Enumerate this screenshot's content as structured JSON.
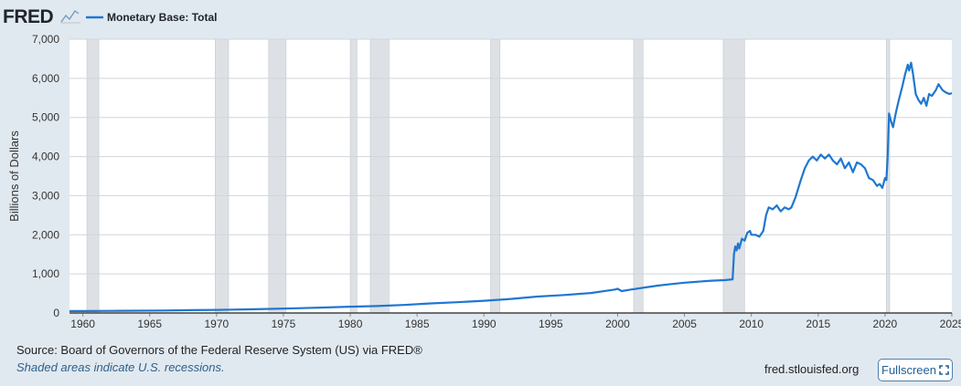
{
  "header": {
    "logo_text": "FRED",
    "legend_label": "Monetary Base: Total"
  },
  "colors": {
    "series": "#1f77d0",
    "recession": "#dde1e5",
    "grid": "#cfd5da",
    "background": "#ffffff",
    "page": "#e1e9f0"
  },
  "chart_data": {
    "type": "line",
    "ylabel": "Billions of Dollars",
    "xlim": [
      1959.0,
      2025.0
    ],
    "ylim": [
      0,
      7000
    ],
    "yticks": [
      0,
      1000,
      2000,
      3000,
      4000,
      5000,
      6000,
      7000
    ],
    "ytick_labels": [
      "0",
      "1,000",
      "2,000",
      "3,000",
      "4,000",
      "5,000",
      "6,000",
      "7,000"
    ],
    "xticks": [
      1960,
      1965,
      1970,
      1975,
      1980,
      1985,
      1990,
      1995,
      2000,
      2005,
      2010,
      2015,
      2020,
      2025
    ],
    "xtick_labels": [
      "1960",
      "1965",
      "1970",
      "1975",
      "1980",
      "1985",
      "1990",
      "1995",
      "2000",
      "2005",
      "2010",
      "2015",
      "2020",
      "2025"
    ],
    "grid": true,
    "legend": "top-left",
    "recessions": [
      [
        1960.3,
        1961.2
      ],
      [
        1969.9,
        1970.9
      ],
      [
        1973.9,
        1975.2
      ],
      [
        1980.0,
        1980.5
      ],
      [
        1981.5,
        1982.9
      ],
      [
        1990.5,
        1991.2
      ],
      [
        2001.2,
        2001.9
      ],
      [
        2007.9,
        2009.5
      ],
      [
        2020.1,
        2020.35
      ]
    ],
    "series": [
      {
        "name": "Monetary Base: Total",
        "x": [
          1959.0,
          1960,
          1962,
          1964,
          1966,
          1968,
          1970,
          1972,
          1974,
          1976,
          1978,
          1980,
          1982,
          1984,
          1986,
          1988,
          1990,
          1992,
          1994,
          1996,
          1998,
          1999.8,
          2000.0,
          2000.3,
          2001,
          2002,
          2003,
          2004,
          2005,
          2006,
          2007,
          2008.0,
          2008.6,
          2008.7,
          2008.8,
          2008.9,
          2009.0,
          2009.1,
          2009.3,
          2009.5,
          2009.7,
          2009.9,
          2010.0,
          2010.3,
          2010.6,
          2010.9,
          2011.1,
          2011.3,
          2011.6,
          2011.9,
          2012.2,
          2012.5,
          2012.8,
          2013.0,
          2013.3,
          2013.7,
          2014.0,
          2014.3,
          2014.6,
          2014.9,
          2015.2,
          2015.5,
          2015.8,
          2016.1,
          2016.4,
          2016.7,
          2017.0,
          2017.3,
          2017.6,
          2017.9,
          2018.2,
          2018.5,
          2018.8,
          2019.1,
          2019.4,
          2019.6,
          2019.8,
          2020.0,
          2020.1,
          2020.2,
          2020.3,
          2020.45,
          2020.6,
          2020.8,
          2021.0,
          2021.3,
          2021.5,
          2021.7,
          2021.8,
          2021.95,
          2022.1,
          2022.3,
          2022.5,
          2022.7,
          2022.9,
          2023.1,
          2023.3,
          2023.5,
          2023.8,
          2024.0,
          2024.3,
          2024.5,
          2024.8,
          2025.0
        ],
        "y": [
          48,
          50,
          53,
          58,
          64,
          72,
          79,
          92,
          106,
          122,
          140,
          160,
          178,
          205,
          245,
          275,
          312,
          360,
          420,
          460,
          510,
          600,
          620,
          560,
          600,
          650,
          700,
          740,
          775,
          800,
          825,
          840,
          860,
          1500,
          1700,
          1600,
          1780,
          1650,
          1900,
          1850,
          2050,
          2100,
          2000,
          2000,
          1950,
          2100,
          2500,
          2700,
          2650,
          2750,
          2600,
          2700,
          2650,
          2700,
          2950,
          3400,
          3700,
          3900,
          4000,
          3900,
          4050,
          3950,
          4050,
          3900,
          3800,
          3950,
          3700,
          3850,
          3600,
          3850,
          3800,
          3700,
          3450,
          3400,
          3250,
          3300,
          3200,
          3450,
          3400,
          4000,
          5100,
          4900,
          4750,
          5100,
          5400,
          5800,
          6100,
          6350,
          6200,
          6400,
          6100,
          5600,
          5450,
          5350,
          5500,
          5300,
          5600,
          5550,
          5700,
          5850,
          5700,
          5650,
          5600,
          5620
        ]
      }
    ]
  },
  "footer": {
    "source": "Source: Board of Governors of the Federal Reserve System (US) via FRED®",
    "note": "Shaded areas indicate U.S. recessions.",
    "site": "fred.stlouisfed.org",
    "fullscreen_label": "Fullscreen"
  }
}
